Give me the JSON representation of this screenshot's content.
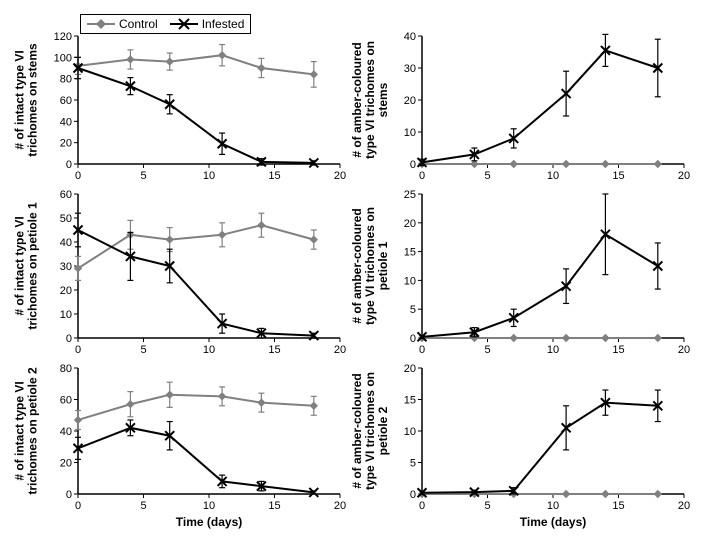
{
  "colors": {
    "control": "#808080",
    "infested": "#000000",
    "axis": "#000000",
    "bg": "#ffffff"
  },
  "legend": {
    "control_label": "Control",
    "infested_label": "Infested"
  },
  "font": {
    "axis_label_size": 12,
    "tick_size": 11,
    "legend_size": 12,
    "weight_label": "bold"
  },
  "xlabel": "Time (days)",
  "xlim": [
    0,
    20
  ],
  "xticks": [
    0,
    5,
    10,
    15,
    20
  ],
  "marker_control": "diamond",
  "marker_infested": "x",
  "line_width": 2,
  "marker_size": 7,
  "panels": [
    {
      "ylabel": "# of intact type VI\ntrichomes on stems",
      "ylim": [
        0,
        120
      ],
      "yticks": [
        0,
        20,
        40,
        60,
        80,
        100,
        120
      ],
      "show_legend": true,
      "show_xlabel": false,
      "control": {
        "x": [
          0,
          4,
          7,
          11,
          14,
          18
        ],
        "y": [
          92,
          98,
          96,
          102,
          90,
          84
        ],
        "err": [
          8,
          9,
          8,
          10,
          9,
          12
        ]
      },
      "infested": {
        "x": [
          0,
          4,
          7,
          11,
          14,
          18
        ],
        "y": [
          90,
          73,
          56,
          19,
          2,
          1
        ],
        "err": [
          10,
          8,
          9,
          10,
          3,
          2
        ]
      }
    },
    {
      "ylabel": "# of amber-coloured\ntype VI trichomes on\nstems",
      "ylim": [
        0,
        40
      ],
      "yticks": [
        0,
        10,
        20,
        30,
        40
      ],
      "show_legend": false,
      "show_xlabel": false,
      "control": {
        "x": [
          0,
          4,
          7,
          11,
          14,
          18
        ],
        "y": [
          0,
          0,
          0,
          0,
          0,
          0
        ],
        "err": [
          0,
          0,
          0,
          0,
          0,
          0
        ]
      },
      "infested": {
        "x": [
          0,
          4,
          7,
          11,
          14,
          18
        ],
        "y": [
          0.5,
          3,
          8,
          22,
          35.5,
          30
        ],
        "err": [
          1,
          2,
          3,
          7,
          5,
          9
        ]
      }
    },
    {
      "ylabel": "# of intact type VI\ntrichomes on petiole 1",
      "ylim": [
        0,
        60
      ],
      "yticks": [
        0,
        10,
        20,
        30,
        40,
        50,
        60
      ],
      "show_legend": false,
      "show_xlabel": false,
      "control": {
        "x": [
          0,
          4,
          7,
          11,
          14,
          18
        ],
        "y": [
          29,
          43,
          41,
          43,
          47,
          41
        ],
        "err": [
          5,
          6,
          5,
          5,
          5,
          4
        ]
      },
      "infested": {
        "x": [
          0,
          4,
          7,
          11,
          14,
          18
        ],
        "y": [
          45,
          34,
          30,
          6,
          2,
          1
        ],
        "err": [
          7,
          10,
          7,
          4,
          2,
          1
        ]
      }
    },
    {
      "ylabel": "# of amber-coloured\ntype VI trichomes on\npetiole 1",
      "ylim": [
        0,
        25
      ],
      "yticks": [
        0,
        5,
        10,
        15,
        20,
        25
      ],
      "show_legend": false,
      "show_xlabel": false,
      "control": {
        "x": [
          0,
          4,
          7,
          11,
          14,
          18
        ],
        "y": [
          0,
          0,
          0,
          0,
          0,
          0
        ],
        "err": [
          0,
          0,
          0,
          0,
          0,
          0
        ]
      },
      "infested": {
        "x": [
          0,
          4,
          7,
          11,
          14,
          18
        ],
        "y": [
          0.2,
          1,
          3.5,
          9,
          18,
          12.5
        ],
        "err": [
          0.3,
          0.8,
          1.5,
          3,
          7,
          4
        ]
      }
    },
    {
      "ylabel": "# of intact type VI\ntrichomes on petiole 2",
      "ylim": [
        0,
        80
      ],
      "yticks": [
        0,
        20,
        40,
        60,
        80
      ],
      "show_legend": false,
      "show_xlabel": true,
      "control": {
        "x": [
          0,
          4,
          7,
          11,
          14,
          18
        ],
        "y": [
          47,
          57,
          63,
          62,
          58,
          56
        ],
        "err": [
          6,
          8,
          8,
          6,
          6,
          6
        ]
      },
      "infested": {
        "x": [
          0,
          4,
          7,
          11,
          14,
          18
        ],
        "y": [
          29,
          42,
          37,
          8,
          5,
          1
        ],
        "err": [
          7,
          5,
          9,
          4,
          3,
          1
        ]
      }
    },
    {
      "ylabel": "# of amber-coloured\ntype VI trichomes on\npetiole 2",
      "ylim": [
        0,
        20
      ],
      "yticks": [
        0,
        5,
        10,
        15,
        20
      ],
      "show_legend": false,
      "show_xlabel": true,
      "control": {
        "x": [
          0,
          4,
          7,
          11,
          14,
          18
        ],
        "y": [
          0,
          0,
          0,
          0,
          0,
          0
        ],
        "err": [
          0,
          0,
          0,
          0,
          0,
          0
        ]
      },
      "infested": {
        "x": [
          0,
          4,
          7,
          11,
          14,
          18
        ],
        "y": [
          0.2,
          0.3,
          0.5,
          10.5,
          14.5,
          14
        ],
        "err": [
          0.3,
          0.3,
          0.5,
          3.5,
          2,
          2.5
        ]
      }
    }
  ]
}
